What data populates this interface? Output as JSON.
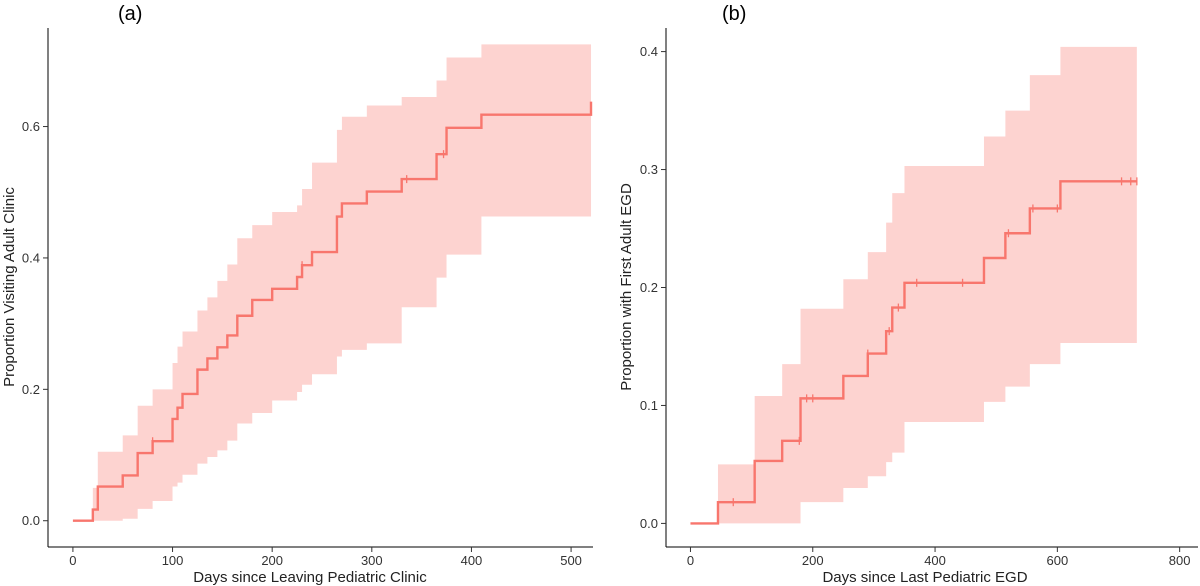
{
  "colors": {
    "series": "#F8766D",
    "band": "#F8766D"
  },
  "chart_data": [
    {
      "type": "line",
      "subtype": "step",
      "panel_label": "(a)",
      "xlabel": "Days since Leaving Pediatric Clinic",
      "ylabel": "Proportion Visiting Adult Clinic",
      "xlim": [
        -25,
        522
      ],
      "ylim": [
        -0.04,
        0.75
      ],
      "xticks": [
        0,
        100,
        200,
        300,
        400,
        500
      ],
      "yticks": [
        0.0,
        0.2,
        0.4,
        0.6
      ],
      "xtick_labels": [
        "0",
        "100",
        "200",
        "300",
        "400",
        "500"
      ],
      "ytick_labels": [
        "0.0",
        "0.2",
        "0.4",
        "0.6"
      ],
      "grid": false,
      "legend": "none",
      "series": [
        {
          "x": [
            0,
            20,
            25,
            50,
            65,
            80,
            100,
            105,
            110,
            125,
            135,
            145,
            155,
            165,
            180,
            200,
            225,
            230,
            240,
            265,
            270,
            295,
            330,
            365,
            375,
            410,
            520
          ],
          "y": [
            0.0,
            0.017,
            0.052,
            0.069,
            0.103,
            0.121,
            0.155,
            0.172,
            0.193,
            0.23,
            0.247,
            0.264,
            0.282,
            0.312,
            0.336,
            0.353,
            0.371,
            0.389,
            0.409,
            0.463,
            0.483,
            0.501,
            0.52,
            0.558,
            0.598,
            0.618,
            0.638
          ],
          "lower": [
            0.0,
            0.0,
            0.0,
            0.003,
            0.018,
            0.03,
            0.052,
            0.058,
            0.07,
            0.087,
            0.097,
            0.107,
            0.122,
            0.148,
            0.164,
            0.183,
            0.196,
            0.207,
            0.223,
            0.25,
            0.26,
            0.27,
            0.325,
            0.37,
            0.405,
            0.463,
            0.48
          ],
          "upper": [
            0.0,
            0.05,
            0.105,
            0.13,
            0.175,
            0.2,
            0.24,
            0.265,
            0.288,
            0.32,
            0.34,
            0.365,
            0.39,
            0.43,
            0.45,
            0.47,
            0.48,
            0.505,
            0.545,
            0.595,
            0.615,
            0.632,
            0.645,
            0.67,
            0.705,
            0.725,
            0.745
          ],
          "censored_x": [
            80,
            230,
            335,
            372
          ]
        }
      ]
    },
    {
      "type": "line",
      "subtype": "step",
      "panel_label": "(b)",
      "xlabel": "Days since Last Pediatric EGD",
      "ylabel": "Proportion with First Adult EGD",
      "xlim": [
        -40,
        830
      ],
      "ylim": [
        -0.02,
        0.42
      ],
      "xticks": [
        0,
        200,
        400,
        600,
        800
      ],
      "yticks": [
        0.0,
        0.1,
        0.2,
        0.3,
        0.4
      ],
      "xtick_labels": [
        "0",
        "200",
        "400",
        "600",
        "800"
      ],
      "ytick_labels": [
        "0.0",
        "0.1",
        "0.2",
        "0.3",
        "0.4"
      ],
      "grid": false,
      "legend": "none",
      "series": [
        {
          "x": [
            0,
            45,
            105,
            150,
            180,
            250,
            290,
            320,
            330,
            350,
            480,
            515,
            555,
            605,
            730
          ],
          "y": [
            0.0,
            0.018,
            0.053,
            0.07,
            0.106,
            0.125,
            0.144,
            0.163,
            0.183,
            0.204,
            0.225,
            0.246,
            0.267,
            0.29,
            0.29
          ],
          "lower": [
            0.0,
            0.0,
            0.0,
            0.0,
            0.018,
            0.03,
            0.04,
            0.052,
            0.06,
            0.086,
            0.103,
            0.116,
            0.135,
            0.153,
            0.153
          ],
          "upper": [
            0.0,
            0.05,
            0.108,
            0.135,
            0.182,
            0.207,
            0.23,
            0.255,
            0.28,
            0.303,
            0.328,
            0.35,
            0.38,
            0.404,
            0.404
          ],
          "censored_x": [
            70,
            178,
            190,
            200,
            290,
            325,
            340,
            370,
            445,
            520,
            560,
            600,
            705,
            720,
            730
          ]
        }
      ]
    }
  ]
}
